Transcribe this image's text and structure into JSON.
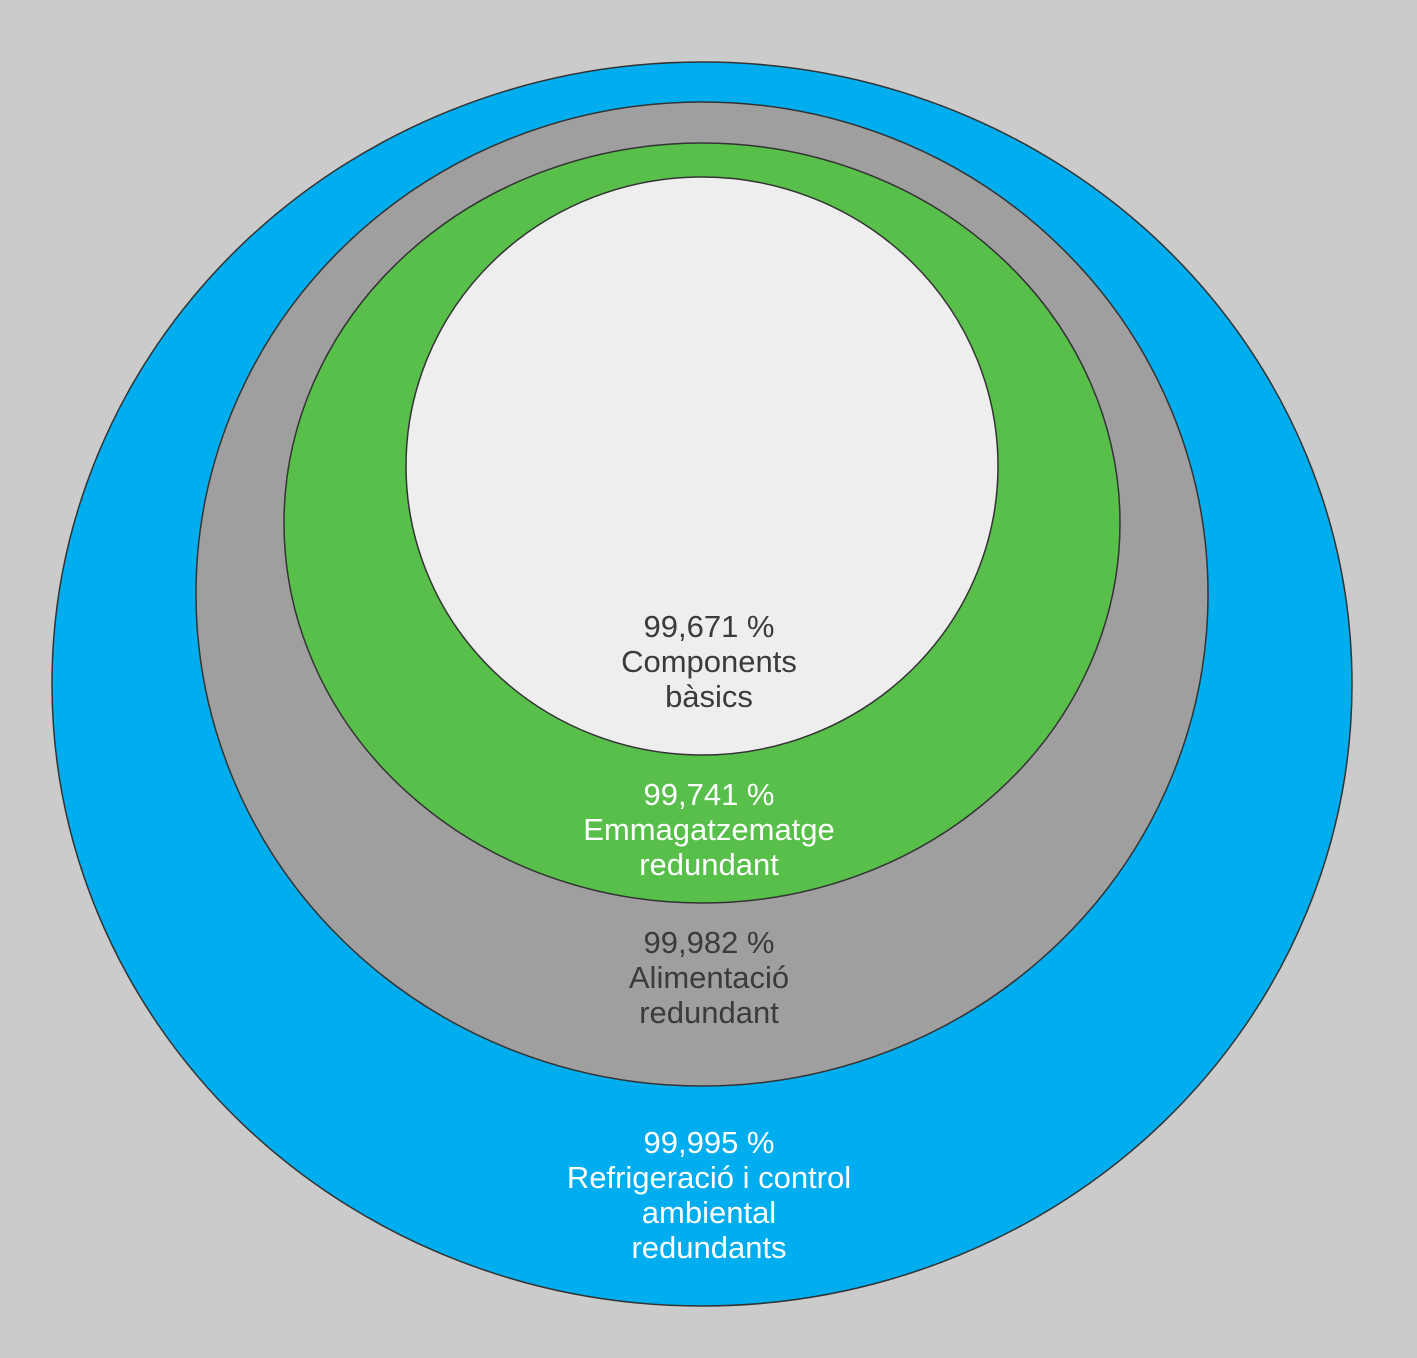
{
  "colors": {
    "background": "#cbcbcb",
    "outline": "#333333"
  },
  "layers": [
    {
      "value": "99,995 %",
      "label_lines": [
        "Refrigeració i control",
        "ambiental",
        "redundants"
      ],
      "fill": "#00adee",
      "text_color": "#ffffff"
    },
    {
      "value": "99,982 %",
      "label_lines": [
        "Alimentació",
        "redundant"
      ],
      "fill": "#9f9f9f",
      "text_color": "#3b3b3b"
    },
    {
      "value": "99,741 %",
      "label_lines": [
        "Emmagatzematge",
        "redundant"
      ],
      "fill": "#57bf4a",
      "text_color": "#ffffff"
    },
    {
      "value": "99,671 %",
      "label_lines": [
        "Components",
        "bàsics"
      ],
      "fill": "#eeeeee",
      "text_color": "#3b3b3b"
    }
  ]
}
